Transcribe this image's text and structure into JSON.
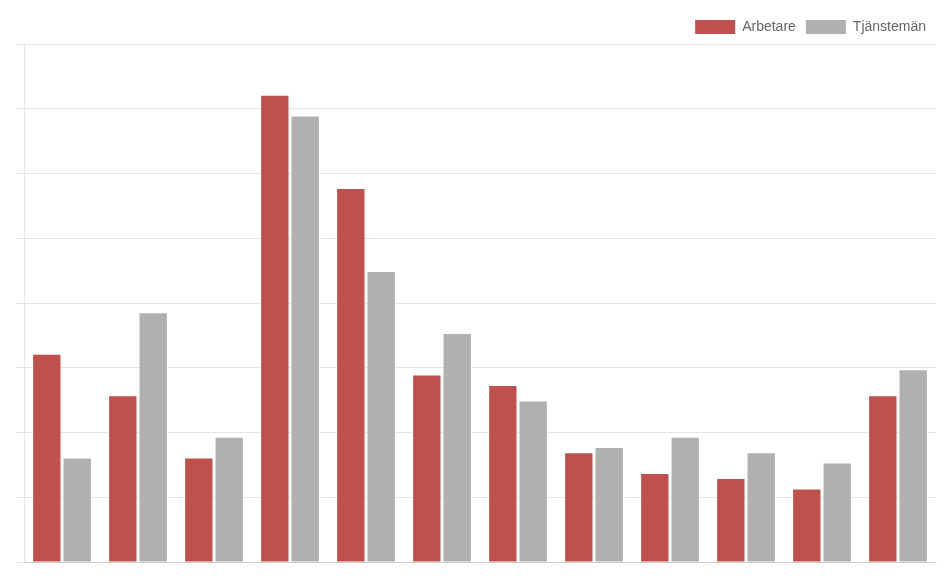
{
  "chart_data": {
    "type": "bar",
    "categories": [
      null,
      null,
      null,
      null,
      null,
      null,
      null,
      null,
      null,
      null,
      null,
      null
    ],
    "series": [
      {
        "name": "Arbetare",
        "color": "#C0504D",
        "values": [
          20.0,
          16.0,
          10.0,
          45.0,
          36.0,
          18.0,
          17.0,
          10.5,
          8.5,
          8.0,
          7.0,
          16.0
        ]
      },
      {
        "name": "Tjänstemän",
        "color": "#B0B0B0",
        "values": [
          10.0,
          24.0,
          12.0,
          43.0,
          28.0,
          22.0,
          15.5,
          11.0,
          12.0,
          10.5,
          9.5,
          18.5
        ]
      }
    ],
    "ylim": [
      0,
      50
    ],
    "yticks": [
      0,
      6.25,
      12.5,
      18.75,
      25,
      31.25,
      37.5,
      43.75,
      50
    ],
    "grid": true,
    "legend": "upper right",
    "tick_labels": false
  }
}
